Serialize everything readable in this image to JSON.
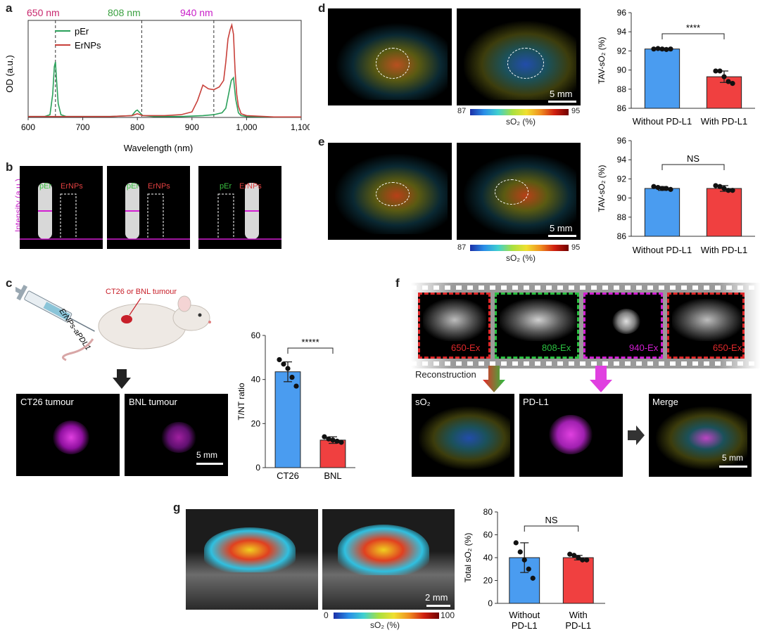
{
  "panel_labels": {
    "a": "a",
    "b": "b",
    "c": "c",
    "d": "d",
    "e": "e",
    "f": "f",
    "g": "g"
  },
  "panel_a": {
    "wavelength_markers": [
      "650 nm",
      "808 nm",
      "940 nm"
    ],
    "legend": [
      "pEr",
      "ErNPs"
    ],
    "ylabel": "OD (a.u.)",
    "xlabel": "Wavelength (nm)",
    "xticks": [
      "600",
      "700",
      "800",
      "900",
      "1,000",
      "1,100"
    ]
  },
  "panel_b": {
    "ylabel": "Intensity (a.u.)",
    "vial_labels": [
      {
        "left": "pEr",
        "right": "ErNPs"
      },
      {
        "left": "pEr",
        "right": "ErNPs"
      },
      {
        "left": "pEr",
        "right": "ErNPs"
      }
    ]
  },
  "panel_c": {
    "syringe_label": "ErNPs-aPDL1",
    "tumour_label": "CT26 or BNL tumour",
    "image_labels": [
      "CT26 tumour",
      "BNL tumour"
    ],
    "scale_bar": "5 mm"
  },
  "panel_d": {
    "scale_bar": "5 mm",
    "colorbar_min": "87",
    "colorbar_max": "95",
    "colorbar_label": "sO₂ (%)"
  },
  "panel_e": {
    "scale_bar": "5 mm",
    "colorbar_min": "87",
    "colorbar_max": "95",
    "colorbar_label": "sO₂ (%)"
  },
  "panel_f": {
    "frame_labels": [
      "650-Ex",
      "808-Ex",
      "940-Ex",
      "650-Ex"
    ],
    "reconstruction": "Reconstruction",
    "result_labels": [
      "sO₂",
      "PD-L1",
      "Merge"
    ],
    "scale_bar": "5 mm"
  },
  "panel_g": {
    "scale_bar": "2 mm",
    "colorbar_min": "0",
    "colorbar_max": "100",
    "colorbar_label": "sO₂ (%)"
  },
  "colors": {
    "pEr": "#2aa05a",
    "ErNPs": "#c8403a",
    "blue_bar": "#4a9cf0",
    "red_bar": "#f04040",
    "magenta": "#d21ed2"
  },
  "chart_data": [
    {
      "id": "a",
      "type": "line",
      "xlabel": "Wavelength (nm)",
      "ylabel": "OD (a.u.)",
      "xlim": [
        600,
        1100
      ],
      "ylim": [
        0,
        1.05
      ],
      "series": [
        {
          "name": "pEr",
          "x": [
            600,
            630,
            640,
            645,
            648,
            650,
            652,
            655,
            660,
            670,
            700,
            750,
            790,
            797,
            800,
            803,
            810,
            830,
            880,
            920,
            940,
            955,
            962,
            967,
            972,
            976,
            980,
            985,
            990,
            1000,
            1050,
            1100
          ],
          "y": [
            0.01,
            0.01,
            0.03,
            0.25,
            0.55,
            0.6,
            0.4,
            0.15,
            0.03,
            0.01,
            0.01,
            0.01,
            0.02,
            0.07,
            0.08,
            0.06,
            0.02,
            0.01,
            0.01,
            0.02,
            0.03,
            0.05,
            0.1,
            0.25,
            0.4,
            0.43,
            0.2,
            0.05,
            0.02,
            0.01,
            0.005,
            0.005
          ]
        },
        {
          "name": "ErNPs",
          "x": [
            600,
            650,
            700,
            750,
            790,
            800,
            810,
            850,
            880,
            900,
            910,
            920,
            930,
            940,
            950,
            958,
            962,
            966,
            970,
            973,
            976,
            979,
            982,
            985,
            990,
            1000,
            1050,
            1100
          ],
          "y": [
            0.01,
            0.01,
            0.01,
            0.01,
            0.02,
            0.04,
            0.02,
            0.02,
            0.03,
            0.06,
            0.18,
            0.35,
            0.31,
            0.3,
            0.33,
            0.4,
            0.6,
            0.85,
            0.95,
            1.0,
            0.9,
            0.5,
            0.25,
            0.12,
            0.04,
            0.02,
            0.005,
            0.005
          ]
        }
      ]
    },
    {
      "id": "c",
      "type": "bar",
      "ylabel": "T/NT ratio",
      "ylim": [
        0,
        60
      ],
      "yticks": [
        0,
        20,
        40,
        60
      ],
      "categories": [
        "CT26",
        "BNL"
      ],
      "values": [
        43.5,
        12.5
      ],
      "errors": [
        4.5,
        1.5
      ],
      "points": [
        [
          49,
          47,
          45,
          41,
          37
        ],
        [
          14,
          13,
          12.5,
          12,
          11.5
        ]
      ],
      "significance": "*****"
    },
    {
      "id": "d",
      "type": "bar",
      "ylabel": "TAV-sO₂ (%)",
      "ylim": [
        86,
        96
      ],
      "yticks": [
        86,
        88,
        90,
        92,
        94,
        96
      ],
      "categories": [
        "Without PD-L1",
        "With PD-L1"
      ],
      "values": [
        92.2,
        89.3
      ],
      "errors": [
        0.1,
        0.6
      ],
      "points": [
        [
          92.2,
          92.25,
          92.2,
          92.15,
          92.2
        ],
        [
          89.9,
          89.9,
          89.3,
          88.8,
          88.6
        ]
      ],
      "significance": "****"
    },
    {
      "id": "e",
      "type": "bar",
      "ylabel": "TAV-sO₂ (%)",
      "ylim": [
        86,
        96
      ],
      "yticks": [
        86,
        88,
        90,
        92,
        94,
        96
      ],
      "categories": [
        "Without PD-L1",
        "With PD-L1"
      ],
      "values": [
        91.0,
        91.0
      ],
      "errors": [
        0.2,
        0.3
      ],
      "points": [
        [
          91.2,
          91.1,
          91.0,
          91.0,
          90.9
        ],
        [
          91.3,
          91.2,
          91.0,
          90.8,
          90.8
        ]
      ],
      "significance": "NS"
    },
    {
      "id": "g",
      "type": "bar",
      "ylabel": "Total sO₂ (%)",
      "ylim": [
        0,
        80
      ],
      "yticks": [
        0,
        20,
        40,
        60,
        80
      ],
      "categories": [
        "Without\nPD-L1",
        "With\nPD-L1"
      ],
      "values": [
        40,
        40
      ],
      "errors": [
        13,
        2
      ],
      "points": [
        [
          53,
          45,
          38,
          30,
          22
        ],
        [
          43,
          42,
          40,
          38,
          38
        ]
      ],
      "significance": "NS"
    }
  ]
}
